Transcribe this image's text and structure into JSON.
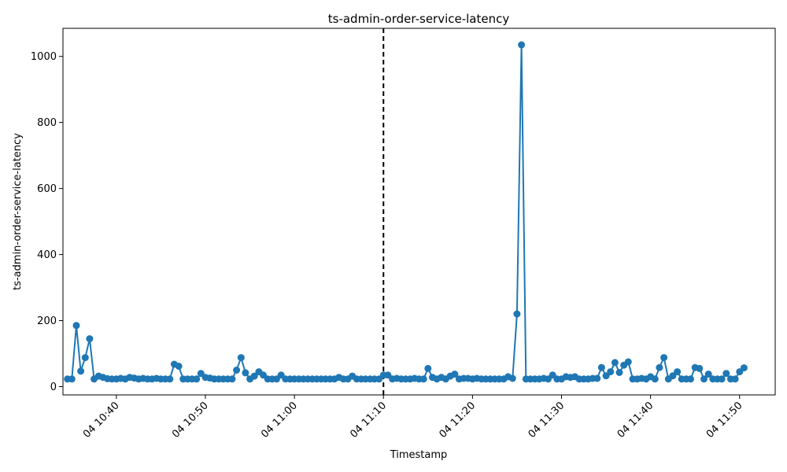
{
  "chart_data": {
    "type": "line",
    "title": "ts-admin-order-service-latency",
    "xlabel": "Timestamp",
    "ylabel": "ts-admin-order-service-latency",
    "ylim": [
      -25,
      1085
    ],
    "xlim": [
      "10:34",
      "11:54"
    ],
    "y_ticks": [
      0,
      200,
      400,
      600,
      800,
      1000
    ],
    "x_ticks": [
      "10:40",
      "11:00",
      "10:50",
      "11:10",
      "11:20",
      "11:30",
      "11:40",
      "11:50"
    ],
    "x_tick_labels": [
      "04 10:40",
      "04 11:00",
      "04 10:50",
      "04 11:10",
      "04 11:20",
      "04 11:30",
      "04 11:40",
      "04 11:50"
    ],
    "marker_line": "11:10",
    "grid": false,
    "line_color": "#1f77b4",
    "marker_line_color": "#000000",
    "series": [
      {
        "values": [
          [
            "10:34:30",
            23
          ],
          [
            "10:35:00",
            23
          ],
          [
            "10:35:30",
            185
          ],
          [
            "10:36:00",
            47
          ],
          [
            "10:36:30",
            88
          ],
          [
            "10:37:00",
            145
          ],
          [
            "10:37:30",
            23
          ],
          [
            "10:38:00",
            32
          ],
          [
            "10:38:30",
            28
          ],
          [
            "10:39:00",
            24
          ],
          [
            "10:39:30",
            23
          ],
          [
            "10:40:00",
            23
          ],
          [
            "10:40:30",
            25
          ],
          [
            "10:41:00",
            23
          ],
          [
            "10:41:30",
            28
          ],
          [
            "10:42:00",
            26
          ],
          [
            "10:42:30",
            23
          ],
          [
            "10:43:00",
            25
          ],
          [
            "10:43:30",
            23
          ],
          [
            "10:44:00",
            23
          ],
          [
            "10:44:30",
            25
          ],
          [
            "10:45:00",
            23
          ],
          [
            "10:45:30",
            23
          ],
          [
            "10:46:00",
            23
          ],
          [
            "10:46:30",
            68
          ],
          [
            "10:47:00",
            62
          ],
          [
            "10:47:30",
            23
          ],
          [
            "10:48:00",
            23
          ],
          [
            "10:48:30",
            23
          ],
          [
            "10:49:00",
            23
          ],
          [
            "10:49:30",
            40
          ],
          [
            "10:50:00",
            28
          ],
          [
            "10:50:30",
            26
          ],
          [
            "10:51:00",
            23
          ],
          [
            "10:51:30",
            23
          ],
          [
            "10:52:00",
            23
          ],
          [
            "10:52:30",
            23
          ],
          [
            "10:53:00",
            23
          ],
          [
            "10:53:30",
            50
          ],
          [
            "10:54:00",
            88
          ],
          [
            "10:54:30",
            42
          ],
          [
            "10:55:00",
            23
          ],
          [
            "10:55:30",
            32
          ],
          [
            "10:56:00",
            45
          ],
          [
            "10:56:30",
            35
          ],
          [
            "10:57:00",
            23
          ],
          [
            "10:57:30",
            23
          ],
          [
            "10:58:00",
            23
          ],
          [
            "10:58:30",
            35
          ],
          [
            "10:59:00",
            23
          ],
          [
            "10:59:30",
            23
          ],
          [
            "11:00:00",
            23
          ],
          [
            "11:00:30",
            23
          ],
          [
            "11:01:00",
            23
          ],
          [
            "11:01:30",
            23
          ],
          [
            "11:02:00",
            23
          ],
          [
            "11:02:30",
            23
          ],
          [
            "11:03:00",
            23
          ],
          [
            "11:03:30",
            23
          ],
          [
            "11:04:00",
            23
          ],
          [
            "11:04:30",
            23
          ],
          [
            "11:05:00",
            28
          ],
          [
            "11:05:30",
            23
          ],
          [
            "11:06:00",
            23
          ],
          [
            "11:06:30",
            32
          ],
          [
            "11:07:00",
            23
          ],
          [
            "11:07:30",
            23
          ],
          [
            "11:08:00",
            23
          ],
          [
            "11:08:30",
            23
          ],
          [
            "11:09:00",
            23
          ],
          [
            "11:09:30",
            23
          ],
          [
            "11:10:00",
            35
          ],
          [
            "11:10:30",
            35
          ],
          [
            "11:11:00",
            23
          ],
          [
            "11:11:30",
            25
          ],
          [
            "11:12:00",
            23
          ],
          [
            "11:12:30",
            23
          ],
          [
            "11:13:00",
            23
          ],
          [
            "11:13:30",
            25
          ],
          [
            "11:14:00",
            23
          ],
          [
            "11:14:30",
            23
          ],
          [
            "11:15:00",
            55
          ],
          [
            "11:15:30",
            28
          ],
          [
            "11:16:00",
            23
          ],
          [
            "11:16:30",
            28
          ],
          [
            "11:17:00",
            23
          ],
          [
            "11:17:30",
            32
          ],
          [
            "11:18:00",
            38
          ],
          [
            "11:18:30",
            23
          ],
          [
            "11:19:00",
            25
          ],
          [
            "11:19:30",
            25
          ],
          [
            "11:20:00",
            23
          ],
          [
            "11:20:30",
            25
          ],
          [
            "11:21:00",
            23
          ],
          [
            "11:21:30",
            23
          ],
          [
            "11:22:00",
            23
          ],
          [
            "11:22:30",
            23
          ],
          [
            "11:23:00",
            23
          ],
          [
            "11:23:30",
            23
          ],
          [
            "11:24:00",
            30
          ],
          [
            "11:24:30",
            25
          ],
          [
            "11:25:00",
            220
          ],
          [
            "11:25:30",
            1035
          ],
          [
            "11:26:00",
            23
          ],
          [
            "11:26:30",
            23
          ],
          [
            "11:27:00",
            23
          ],
          [
            "11:27:30",
            23
          ],
          [
            "11:28:00",
            25
          ],
          [
            "11:28:30",
            23
          ],
          [
            "11:29:00",
            35
          ],
          [
            "11:29:30",
            23
          ],
          [
            "11:30:00",
            23
          ],
          [
            "11:30:30",
            30
          ],
          [
            "11:31:00",
            28
          ],
          [
            "11:31:30",
            30
          ],
          [
            "11:32:00",
            23
          ],
          [
            "11:32:30",
            23
          ],
          [
            "11:33:00",
            23
          ],
          [
            "11:33:30",
            25
          ],
          [
            "11:34:00",
            25
          ],
          [
            "11:34:30",
            58
          ],
          [
            "11:35:00",
            33
          ],
          [
            "11:35:30",
            45
          ],
          [
            "11:36:00",
            73
          ],
          [
            "11:36:30",
            43
          ],
          [
            "11:37:00",
            65
          ],
          [
            "11:37:30",
            75
          ],
          [
            "11:38:00",
            23
          ],
          [
            "11:38:30",
            23
          ],
          [
            "11:39:00",
            25
          ],
          [
            "11:39:30",
            23
          ],
          [
            "11:40:00",
            30
          ],
          [
            "11:40:30",
            23
          ],
          [
            "11:41:00",
            58
          ],
          [
            "11:41:30",
            88
          ],
          [
            "11:42:00",
            23
          ],
          [
            "11:42:30",
            33
          ],
          [
            "11:43:00",
            45
          ],
          [
            "11:43:30",
            23
          ],
          [
            "11:44:00",
            23
          ],
          [
            "11:44:30",
            23
          ],
          [
            "11:45:00",
            58
          ],
          [
            "11:45:30",
            55
          ],
          [
            "11:46:00",
            23
          ],
          [
            "11:46:30",
            38
          ],
          [
            "11:47:00",
            23
          ],
          [
            "11:47:30",
            23
          ],
          [
            "11:48:00",
            23
          ],
          [
            "11:48:30",
            40
          ],
          [
            "11:49:00",
            23
          ],
          [
            "11:49:30",
            23
          ],
          [
            "11:50:00",
            45
          ],
          [
            "11:50:30",
            57
          ]
        ]
      }
    ]
  }
}
